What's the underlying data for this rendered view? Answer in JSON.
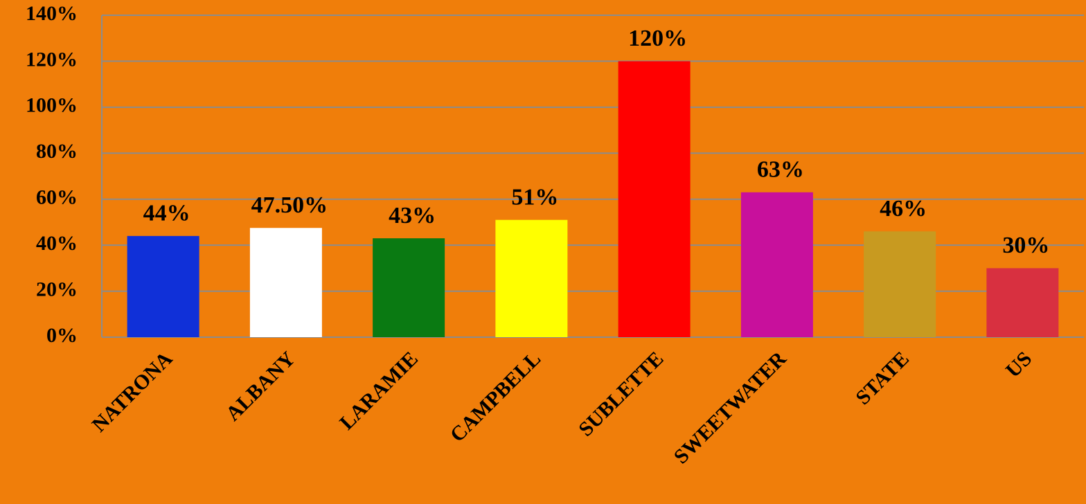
{
  "chart_data": {
    "type": "bar",
    "categories": [
      "NATRONA",
      "ALBANY",
      "LARAMIE",
      "CAMPBELL",
      "SUBLETTE",
      "SWEETWATER",
      "STATE",
      "US"
    ],
    "values": [
      44,
      47.5,
      43,
      51,
      120,
      63,
      46,
      30
    ],
    "value_labels": [
      "44%",
      "47.50%",
      "43%",
      "51%",
      "120%",
      "63%",
      "46%",
      "30%"
    ],
    "colors": [
      "#1030d8",
      "#ffffff",
      "#0a7a12",
      "#ffff00",
      "#ff0000",
      "#c8109c",
      "#c89a20",
      "#d83040"
    ],
    "ylim": [
      0,
      140
    ],
    "yticks": [
      {
        "value": 0,
        "label": "0%"
      },
      {
        "value": 20,
        "label": "20%"
      },
      {
        "value": 40,
        "label": "40%"
      },
      {
        "value": 60,
        "label": "60%"
      },
      {
        "value": 80,
        "label": "80%"
      },
      {
        "value": 100,
        "label": "100%"
      },
      {
        "value": 120,
        "label": "120%"
      },
      {
        "value": 140,
        "label": "140%"
      }
    ],
    "grid": true
  }
}
